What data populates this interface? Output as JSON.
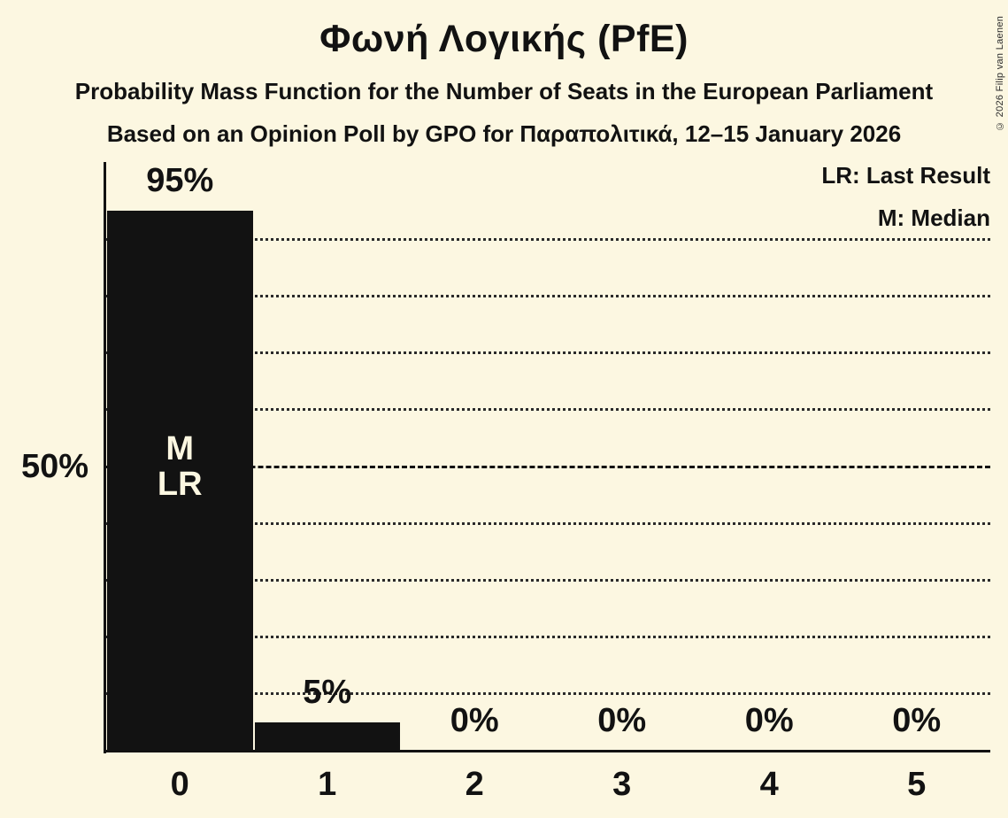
{
  "title": "Φωνή Λογικής (PfE)",
  "subtitle1": "Probability Mass Function for the Number of Seats in the European Parliament",
  "subtitle2": "Based on an Opinion Poll by GPO for Παραπολιτικά, 12–15 January 2026",
  "copyright": "© 2026 Filip van Laenen",
  "legend": {
    "last_result": "LR: Last Result",
    "median": "M: Median"
  },
  "colors": {
    "background": "#FCF7E1",
    "bar": "#121212",
    "text": "#121212",
    "gridline": "#2a2a2a"
  },
  "chart_data": {
    "type": "bar",
    "title": "Φωνή Λογικής (PfE)",
    "xlabel": "",
    "ylabel": "",
    "categories": [
      "0",
      "1",
      "2",
      "3",
      "4",
      "5"
    ],
    "values": [
      95,
      5,
      0,
      0,
      0,
      0
    ],
    "bar_labels": [
      "95%",
      "5%",
      "0%",
      "0%",
      "0%",
      "0%"
    ],
    "ylim": [
      0,
      100
    ],
    "y_gridlines_percent": [
      10,
      20,
      30,
      40,
      50,
      60,
      70,
      80,
      90
    ],
    "y_emphasis_line_percent": 50,
    "y_axis_tick": {
      "label": "50%",
      "percent": 50
    },
    "grid": "dotted horizontal lines, dashed line at 50%",
    "legend_position": "top-right",
    "bar0_annotations": [
      "M",
      "LR"
    ],
    "median_seats": "0",
    "last_result_seats": "0"
  }
}
